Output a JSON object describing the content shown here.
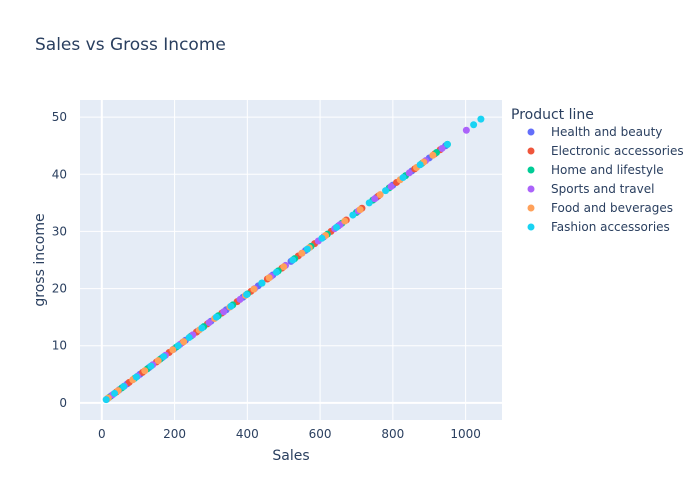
{
  "chart_data": {
    "type": "scatter",
    "title": "Sales vs Gross Income",
    "xlabel": "Sales",
    "ylabel": "gross income",
    "xlim": [
      -60,
      1100
    ],
    "ylim": [
      -3,
      53
    ],
    "xticks": [
      0,
      200,
      400,
      600,
      800,
      1000
    ],
    "yticks": [
      0,
      10,
      20,
      30,
      40,
      50
    ],
    "grid": true,
    "legend_title": "Product line",
    "legend_position": "right",
    "relation": "gross income = 0.047619 × Sales",
    "series": [
      {
        "name": "Health and beauty",
        "color": "#636efa",
        "x": [
          25,
          48,
          70,
          105,
          130,
          165,
          198,
          230,
          262,
          300,
          342,
          388,
          430,
          470,
          520,
          560,
          610,
          650,
          700,
          755,
          800,
          852,
          900,
          945
        ],
        "y": [
          1.19,
          2.29,
          3.33,
          5.0,
          6.19,
          7.86,
          9.43,
          10.95,
          12.48,
          14.29,
          16.29,
          18.48,
          20.48,
          22.38,
          24.76,
          26.67,
          29.05,
          30.95,
          33.33,
          35.95,
          38.1,
          40.57,
          42.86,
          45.0
        ]
      },
      {
        "name": "Electronic accessories",
        "color": "#ef553b",
        "x": [
          15,
          40,
          75,
          112,
          150,
          185,
          222,
          260,
          290,
          330,
          372,
          410,
          455,
          495,
          540,
          585,
          630,
          672,
          715,
          760,
          810,
          860,
          915,
          930
        ],
        "y": [
          0.71,
          1.9,
          3.57,
          5.33,
          7.14,
          8.81,
          10.57,
          12.38,
          13.81,
          15.71,
          17.71,
          19.52,
          21.67,
          23.57,
          25.71,
          27.86,
          30.0,
          32.0,
          34.05,
          36.19,
          38.57,
          40.95,
          43.57,
          44.29
        ]
      },
      {
        "name": "Home and lifestyle",
        "color": "#00cc96",
        "x": [
          20,
          55,
          90,
          125,
          160,
          205,
          245,
          280,
          320,
          360,
          400,
          440,
          485,
          530,
          575,
          620,
          660,
          700,
          745,
          790,
          835,
          880,
          920,
          950
        ],
        "y": [
          0.95,
          2.62,
          4.29,
          5.95,
          7.62,
          9.76,
          11.67,
          13.33,
          15.24,
          17.14,
          19.05,
          20.95,
          23.1,
          25.24,
          27.38,
          29.52,
          31.43,
          33.33,
          35.48,
          37.62,
          39.76,
          41.9,
          43.81,
          45.24
        ]
      },
      {
        "name": "Sports and travel",
        "color": "#ab63fa",
        "x": [
          30,
          62,
          98,
          140,
          175,
          215,
          250,
          295,
          335,
          380,
          420,
          465,
          505,
          550,
          595,
          640,
          655,
          705,
          750,
          795,
          845,
          890,
          935,
          1002
        ],
        "y": [
          1.43,
          2.95,
          4.67,
          6.67,
          8.33,
          10.24,
          11.9,
          14.05,
          15.95,
          18.1,
          20.0,
          22.14,
          24.05,
          26.19,
          28.33,
          30.48,
          31.19,
          33.57,
          35.71,
          37.86,
          40.24,
          42.38,
          44.52,
          47.71
        ]
      },
      {
        "name": "Food and beverages",
        "color": "#ffa15a",
        "x": [
          18,
          45,
          85,
          118,
          155,
          195,
          225,
          268,
          310,
          352,
          395,
          418,
          460,
          500,
          550,
          570,
          615,
          668,
          710,
          765,
          820,
          865,
          885,
          910
        ],
        "y": [
          0.86,
          2.14,
          4.05,
          5.62,
          7.38,
          9.29,
          10.71,
          12.76,
          14.76,
          16.76,
          18.81,
          19.9,
          21.9,
          23.81,
          26.19,
          27.14,
          29.29,
          31.81,
          33.81,
          36.43,
          39.05,
          41.19,
          42.14,
          43.33
        ]
      },
      {
        "name": "Fashion accessories",
        "color": "#19d3f3",
        "x": [
          12,
          35,
          60,
          95,
          135,
          170,
          210,
          240,
          275,
          315,
          355,
          398,
          440,
          480,
          525,
          565,
          605,
          645,
          690,
          735,
          780,
          828,
          875,
          950,
          1022,
          1042
        ],
        "y": [
          0.57,
          1.67,
          2.86,
          4.52,
          6.43,
          8.1,
          10.0,
          11.43,
          13.1,
          15.0,
          16.9,
          18.95,
          20.95,
          22.86,
          25.0,
          26.9,
          28.81,
          30.71,
          32.86,
          35.0,
          37.14,
          39.43,
          41.67,
          45.24,
          48.67,
          49.65
        ]
      }
    ]
  }
}
